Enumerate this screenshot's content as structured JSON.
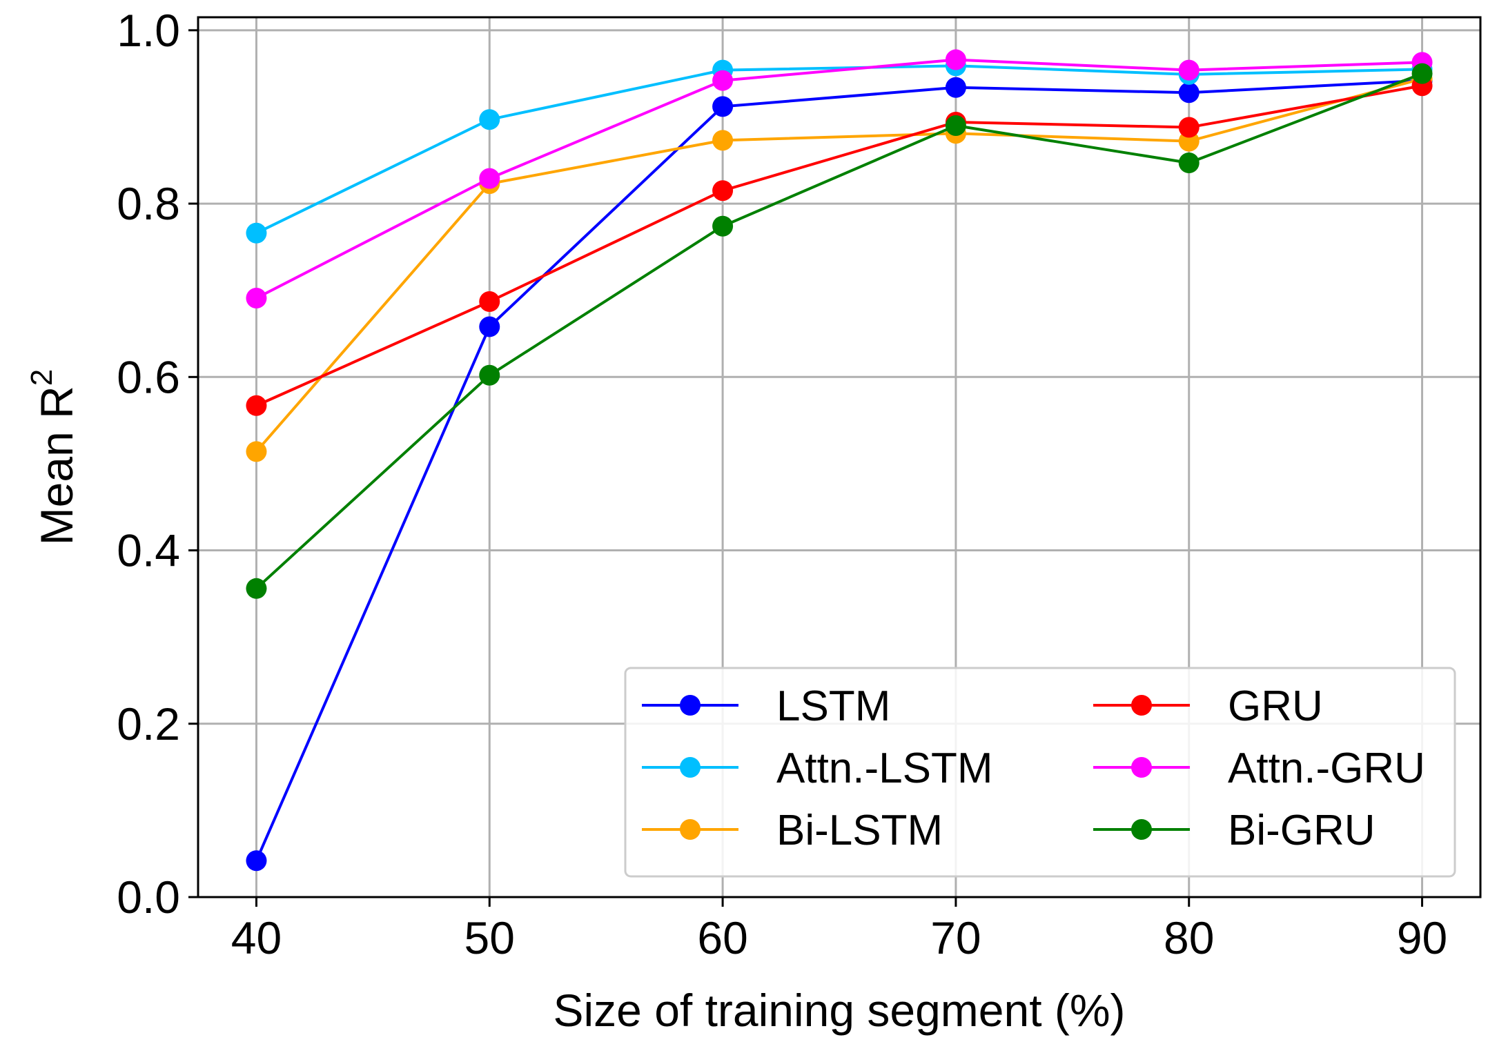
{
  "chart_data": {
    "type": "line",
    "title": "",
    "xlabel": "Size of training segment (%)",
    "ylabel": "Mean R",
    "ylabel_superscript": "2",
    "x": [
      40,
      50,
      60,
      70,
      80,
      90
    ],
    "x_ticks": [
      40,
      50,
      60,
      70,
      80,
      90
    ],
    "y_ticks": [
      0.0,
      0.2,
      0.4,
      0.6,
      0.8,
      1.0
    ],
    "y_tick_labels": [
      "0.0",
      "0.2",
      "0.4",
      "0.6",
      "0.8",
      "1.0"
    ],
    "xlim": [
      37.5,
      92.5
    ],
    "ylim": [
      0.0,
      1.015
    ],
    "grid": true,
    "legend_position": "lower-right",
    "legend_columns": 2,
    "series": [
      {
        "name": "LSTM",
        "color": "#0000ff",
        "values": [
          0.042,
          0.658,
          0.912,
          0.934,
          0.928,
          0.942
        ]
      },
      {
        "name": "Attn.-LSTM",
        "color": "#00bfff",
        "values": [
          0.766,
          0.897,
          0.954,
          0.959,
          0.949,
          0.955
        ]
      },
      {
        "name": "Bi-LSTM",
        "color": "#ffa500",
        "values": [
          0.514,
          0.823,
          0.873,
          0.881,
          0.872,
          0.944
        ]
      },
      {
        "name": "GRU",
        "color": "#ff0000",
        "values": [
          0.567,
          0.687,
          0.815,
          0.894,
          0.888,
          0.936
        ]
      },
      {
        "name": "Attn.-GRU",
        "color": "#ff00ff",
        "values": [
          0.691,
          0.829,
          0.942,
          0.966,
          0.954,
          0.963
        ]
      },
      {
        "name": "Bi-GRU",
        "color": "#008000",
        "values": [
          0.356,
          0.602,
          0.774,
          0.89,
          0.847,
          0.95
        ]
      }
    ]
  }
}
